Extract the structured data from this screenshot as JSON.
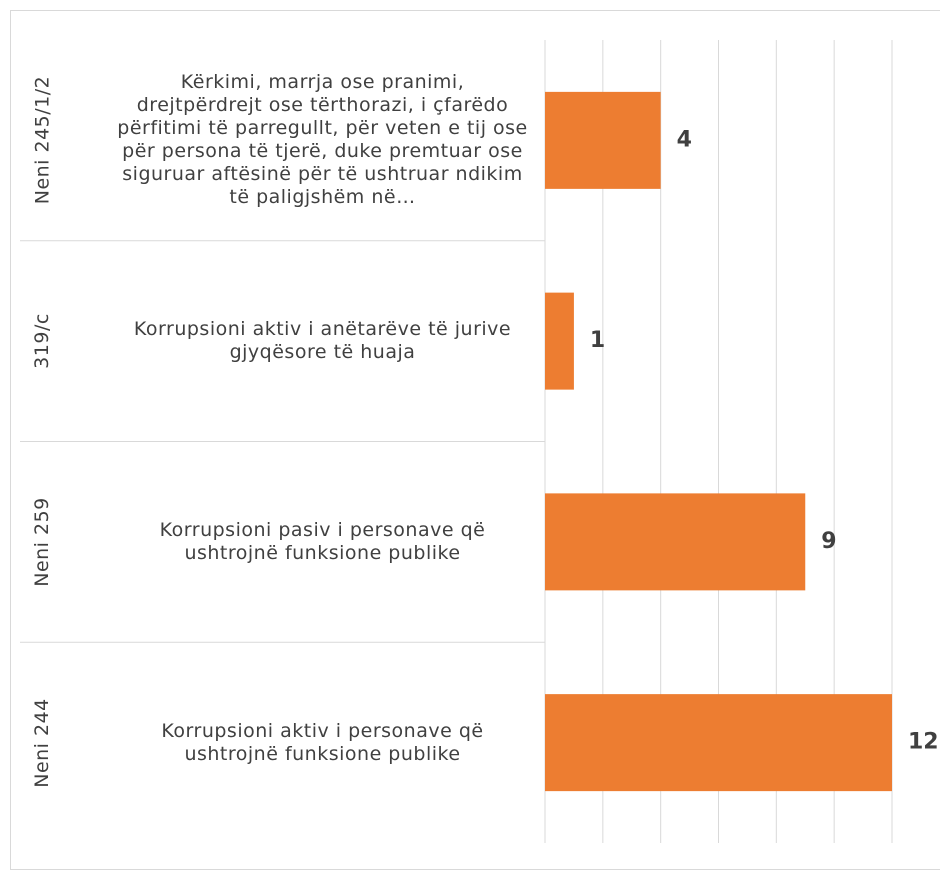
{
  "chart_data": {
    "type": "bar",
    "orientation": "horizontal",
    "groups": [
      "Neni 245/1/2",
      "319/c",
      "Neni 259",
      "Neni 244"
    ],
    "categories": [
      "Kërkimi, marrja ose pranimi, drejtpërdrejt ose tërthorazi, i çfarëdo përfitimi të parregullt, për veten e tij ose për persona të tjerë, duke premtuar ose siguruar aftësinë për të ushtruar ndikim të paligjshëm në…",
      "Korrupsioni aktiv i anëtarëve të jurive gjyqësore të huaja",
      "Korrupsioni pasiv i personave që ushtrojnë funksione publike",
      "Korrupsioni aktiv i personave që ushtrojnë funksione publike"
    ],
    "values": [
      4,
      1,
      9,
      12
    ],
    "color": "#ed7d31",
    "xlim": [
      0,
      12
    ],
    "xticks": [
      0,
      2,
      4,
      6,
      8,
      10,
      12
    ],
    "grid": true
  }
}
